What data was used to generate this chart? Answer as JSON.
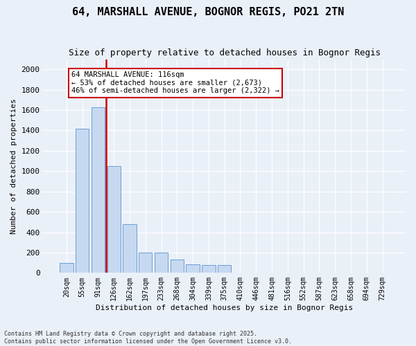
{
  "title1": "64, MARSHALL AVENUE, BOGNOR REGIS, PO21 2TN",
  "title2": "Size of property relative to detached houses in Bognor Regis",
  "xlabel": "Distribution of detached houses by size in Bognor Regis",
  "ylabel": "Number of detached properties",
  "bins": [
    "20sqm",
    "55sqm",
    "91sqm",
    "126sqm",
    "162sqm",
    "197sqm",
    "233sqm",
    "268sqm",
    "304sqm",
    "339sqm",
    "375sqm",
    "410sqm",
    "446sqm",
    "481sqm",
    "516sqm",
    "552sqm",
    "587sqm",
    "623sqm",
    "658sqm",
    "694sqm",
    "729sqm"
  ],
  "bar_values": [
    100,
    1420,
    1630,
    1050,
    475,
    200,
    200,
    130,
    85,
    80,
    75,
    0,
    0,
    0,
    0,
    0,
    0,
    0,
    0,
    0,
    0
  ],
  "bar_color": "#c6d9f1",
  "bar_edge_color": "#6a9ed4",
  "vline_color": "#cc0000",
  "annotation_text": "64 MARSHALL AVENUE: 116sqm\n← 53% of detached houses are smaller (2,673)\n46% of semi-detached houses are larger (2,322) →",
  "annotation_box_color": "#ffffff",
  "annotation_box_edge": "#cc0000",
  "ylim": [
    0,
    2100
  ],
  "yticks": [
    0,
    200,
    400,
    600,
    800,
    1000,
    1200,
    1400,
    1600,
    1800,
    2000
  ],
  "footer1": "Contains HM Land Registry data © Crown copyright and database right 2025.",
  "footer2": "Contains public sector information licensed under the Open Government Licence v3.0.",
  "bg_color": "#eaf0f8",
  "plot_bg_color": "#eaf0f8"
}
